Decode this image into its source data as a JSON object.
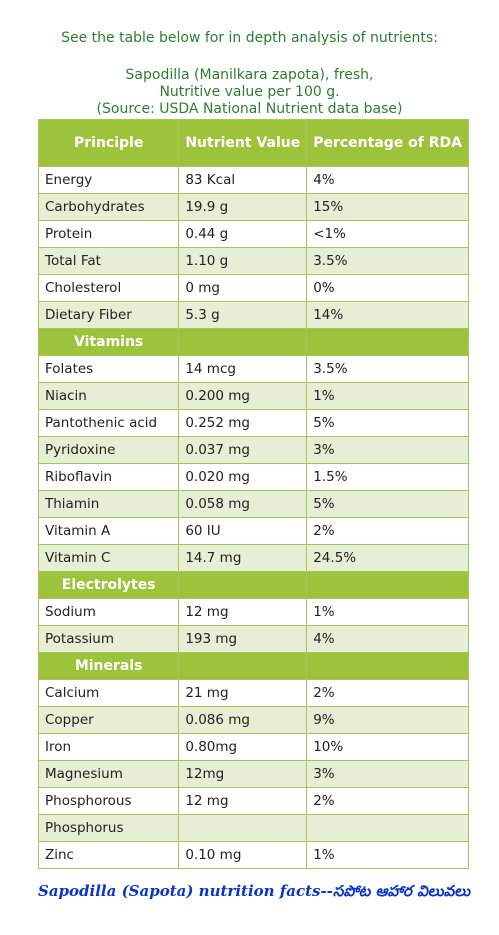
{
  "intro": "See the table below for in depth analysis of nutrients:",
  "caption": {
    "line1": "Sapodilla (Manilkara zapota), fresh,",
    "line2": "Nutritive value per 100 g.",
    "line3": "(Source: USDA National Nutrient data base)"
  },
  "table": {
    "headers": {
      "principle": "Principle",
      "nutrient_value": "Nutrient Value",
      "percentage": "Percentage of RDA"
    },
    "rows": [
      {
        "type": "row",
        "principle": "Energy",
        "value": "83 Kcal",
        "rda": "4%"
      },
      {
        "type": "row",
        "principle": "Carbohydrates",
        "value": "19.9 g",
        "rda": "15%"
      },
      {
        "type": "row",
        "principle": "Protein",
        "value": "0.44 g",
        "rda": "<1%"
      },
      {
        "type": "row",
        "principle": "Total Fat",
        "value": "1.10 g",
        "rda": "3.5%"
      },
      {
        "type": "row",
        "principle": "Cholesterol",
        "value": "0 mg",
        "rda": "0%"
      },
      {
        "type": "row",
        "principle": "Dietary Fiber",
        "value": "5.3 g",
        "rda": "14%"
      },
      {
        "type": "section",
        "principle": "Vitamins"
      },
      {
        "type": "row",
        "principle": "Folates",
        "value": "14 mcg",
        "rda": "3.5%"
      },
      {
        "type": "row",
        "principle": "Niacin",
        "value": "0.200 mg",
        "rda": "1%"
      },
      {
        "type": "row",
        "principle": "Pantothenic acid",
        "value": "0.252 mg",
        "rda": "5%"
      },
      {
        "type": "row",
        "principle": "Pyridoxine",
        "value": "0.037 mg",
        "rda": "3%"
      },
      {
        "type": "row",
        "principle": "Riboflavin",
        "value": "0.020 mg",
        "rda": "1.5%"
      },
      {
        "type": "row",
        "principle": "Thiamin",
        "value": "0.058 mg",
        "rda": "5%"
      },
      {
        "type": "row",
        "principle": "Vitamin A",
        "value": "60 IU",
        "rda": "2%"
      },
      {
        "type": "row",
        "principle": "Vitamin C",
        "value": "14.7 mg",
        "rda": "24.5%"
      },
      {
        "type": "section",
        "principle": "Electrolytes"
      },
      {
        "type": "row",
        "principle": "Sodium",
        "value": "12 mg",
        "rda": "1%"
      },
      {
        "type": "row",
        "principle": "Potassium",
        "value": "193 mg",
        "rda": "4%"
      },
      {
        "type": "section",
        "principle": "Minerals"
      },
      {
        "type": "row",
        "principle": "Calcium",
        "value": "21 mg",
        "rda": "2%"
      },
      {
        "type": "row",
        "principle": "Copper",
        "value": "0.086 mg",
        "rda": "9%"
      },
      {
        "type": "row",
        "principle": "Iron",
        "value": "0.80mg",
        "rda": "10%"
      },
      {
        "type": "row",
        "principle": "Magnesium",
        "value": "12mg",
        "rda": "3%"
      },
      {
        "type": "row",
        "principle": "Phosphorous",
        "value": "12 mg",
        "rda": "2%"
      },
      {
        "type": "row",
        "principle": "Phosphorus",
        "value": "",
        "rda": ""
      },
      {
        "type": "row",
        "principle": "Zinc",
        "value": "0.10 mg",
        "rda": "1%"
      }
    ]
  },
  "footer": "Sapodilla (Sapota) nutrition facts--సపోట ఆహార విలువలు",
  "colors": {
    "header_bg": "#9dc23b",
    "row_alt_bg": "#e6eed6",
    "text_green": "#2e7d32",
    "footer_blue": "#0b33c9"
  }
}
